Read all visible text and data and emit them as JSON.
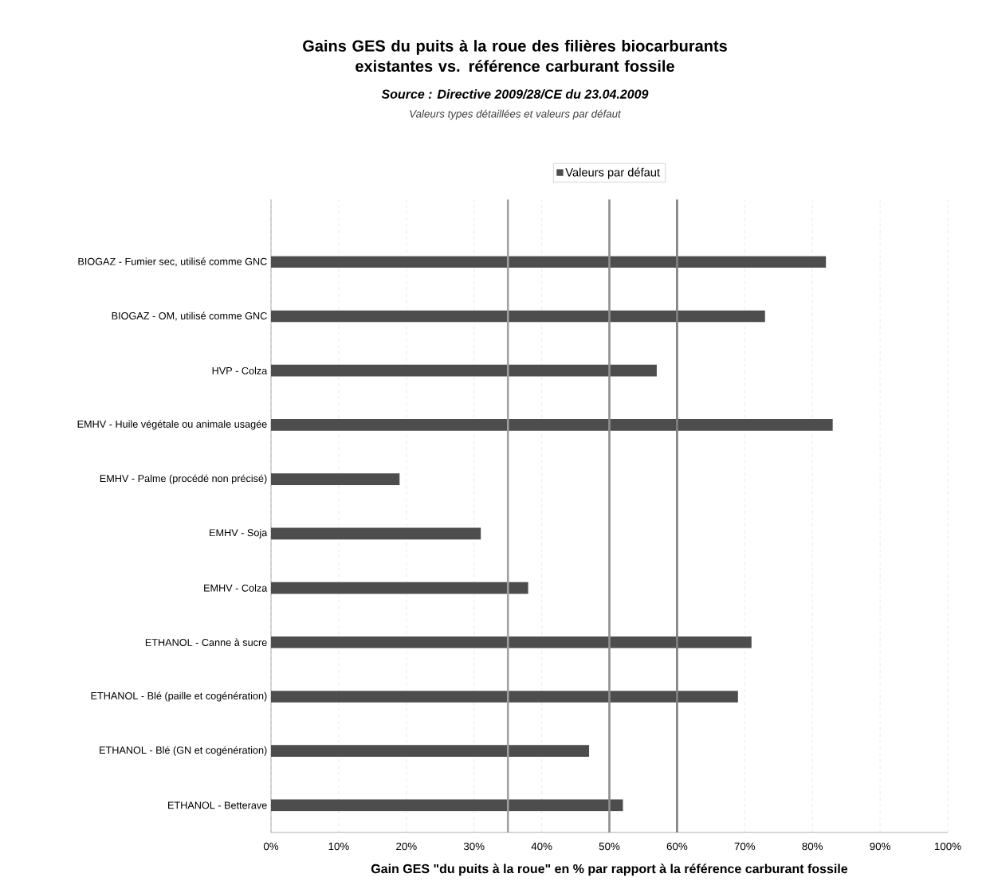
{
  "chart_data": {
    "type": "bar",
    "orientation": "horizontal",
    "title": "Gains GES du puits à la roue des filières biocarburants existantes vs. référence carburant fossile",
    "subtitle": "Source : Directive 2009/28/CE du 23.04.2009",
    "annotations": [
      "Valeurs types détaillées et valeurs par défaut"
    ],
    "xlabel": "Gain GES \"du puits à la roue\" en % par rapport à la référence carburant fossile",
    "categories": [
      "BIOGAZ - Fumier sec, utilisé comme GNC",
      "BIOGAZ - OM, utilisé comme GNC",
      "HVP - Colza",
      "EMHV - Huile végétale ou animale usagée",
      "EMHV - Palme (procédé non précisé)",
      "EMHV - Soja",
      "EMHV - Colza",
      "ETHANOL - Canne à sucre",
      "ETHANOL - Blé (paille et cogénération)",
      "ETHANOL - Blé (GN et cogénération)",
      "ETHANOL - Betterave"
    ],
    "series": [
      {
        "name": "Valeurs par défaut",
        "color": "#4d4d4d",
        "values": [
          82,
          73,
          57,
          83,
          19,
          31,
          38,
          71,
          69,
          47,
          52
        ]
      }
    ],
    "xlim": [
      0,
      100
    ],
    "xticks": [
      {
        "value": 0,
        "label": "0%"
      },
      {
        "value": 10,
        "label": "10%"
      },
      {
        "value": 20,
        "label": "20%"
      },
      {
        "value": 30,
        "label": "30%"
      },
      {
        "value": 40,
        "label": "40%"
      },
      {
        "value": 50,
        "label": "50%"
      },
      {
        "value": 60,
        "label": "60%"
      },
      {
        "value": 70,
        "label": "70%"
      },
      {
        "value": 80,
        "label": "80%"
      },
      {
        "value": 90,
        "label": "90%"
      },
      {
        "value": 100,
        "label": "100%"
      }
    ],
    "ref_lines": [
      {
        "axis": "x",
        "value": 35,
        "color": "#a0a0a0"
      },
      {
        "axis": "x",
        "value": 50,
        "color": "#909090"
      },
      {
        "axis": "x",
        "value": 60,
        "color": "#808080"
      }
    ],
    "grid": "x",
    "legend": "top"
  }
}
